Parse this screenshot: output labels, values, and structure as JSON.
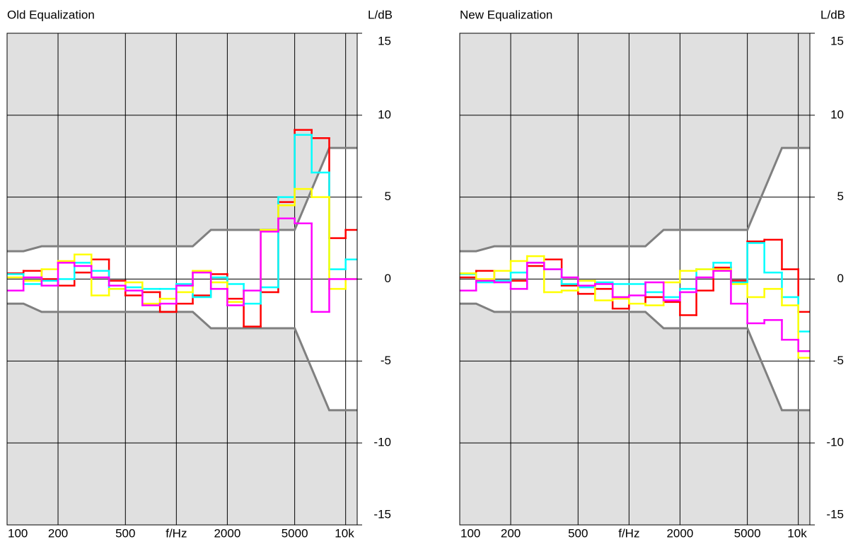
{
  "chart_data": [
    {
      "type": "line",
      "step": "post",
      "title": "Old Equalization",
      "y_label": "L/dB",
      "xscale": "log",
      "xlim": [
        100,
        11700
      ],
      "ylim": [
        -15,
        15
      ],
      "xticks": [
        100,
        200,
        500,
        {
          "value": 1000,
          "label": "f/Hz"
        },
        2000,
        5000,
        {
          "value": 10000,
          "label": "10k"
        }
      ],
      "yticks": [
        -15,
        -10,
        -5,
        0,
        5,
        10,
        15
      ],
      "grid": true,
      "x": [
        100,
        125,
        160,
        200,
        250,
        315,
        400,
        500,
        630,
        800,
        1000,
        1250,
        1600,
        2000,
        2500,
        3150,
        4000,
        5000,
        6300,
        8000,
        10000
      ],
      "series": [
        {
          "color": "#ff0000",
          "values": [
            0.35,
            0.5,
            0,
            -0.4,
            0.4,
            1.2,
            -0.1,
            -1.0,
            -0.8,
            -2.0,
            -1.5,
            -1.0,
            0.3,
            -1.2,
            -2.9,
            -0.8,
            4.7,
            9.1,
            8.6,
            2.5,
            3.0
          ]
        },
        {
          "color": "#00ffff",
          "values": [
            0.3,
            -0.3,
            -0.1,
            0,
            1.0,
            0.5,
            -0.6,
            -0.5,
            -0.6,
            -0.6,
            -0.3,
            -1.1,
            0.1,
            -0.3,
            -1.5,
            -0.5,
            5.0,
            8.8,
            6.5,
            0.6,
            1.2
          ]
        },
        {
          "color": "#ffff00",
          "values": [
            0.1,
            -0.1,
            0.6,
            1.1,
            1.5,
            -1.0,
            -0.6,
            -0.2,
            -1.5,
            -1.2,
            -0.8,
            0.5,
            -0.2,
            -1.4,
            -0.7,
            3.0,
            4.5,
            5.5,
            5.0,
            -0.6,
            0
          ]
        },
        {
          "color": "#ff00ff",
          "values": [
            -0.7,
            0.1,
            -0.4,
            1.0,
            0.8,
            0.1,
            -0.4,
            -0.7,
            -1.6,
            -1.5,
            -0.4,
            0.4,
            -0.6,
            -1.6,
            -0.7,
            2.9,
            3.7,
            3.4,
            -2.0,
            0,
            0
          ]
        }
      ],
      "tolerance": {
        "color": "#808080",
        "x": [
          100,
          125,
          160,
          1250,
          1600,
          5000,
          8000,
          11700
        ],
        "upper": [
          1.7,
          1.7,
          2,
          2,
          3,
          3,
          8,
          8
        ],
        "lower": [
          -1.5,
          -1.5,
          -2,
          -2,
          -3,
          -3,
          -8,
          -8
        ]
      }
    },
    {
      "type": "line",
      "step": "post",
      "title": "New Equalization",
      "y_label": "L/dB",
      "xscale": "log",
      "xlim": [
        100,
        11700
      ],
      "ylim": [
        -15,
        15
      ],
      "xticks": [
        100,
        200,
        500,
        {
          "value": 1000,
          "label": "f/Hz"
        },
        2000,
        5000,
        {
          "value": 10000,
          "label": "10k"
        }
      ],
      "yticks": [
        -15,
        -10,
        -5,
        0,
        5,
        10,
        15
      ],
      "grid": true,
      "x": [
        100,
        125,
        160,
        200,
        250,
        315,
        400,
        500,
        630,
        800,
        1000,
        1250,
        1600,
        2000,
        2500,
        3150,
        4000,
        5000,
        6300,
        8000,
        10000
      ],
      "series": [
        {
          "color": "#ff0000",
          "values": [
            0.1,
            0.5,
            -0.1,
            -0.1,
            0.8,
            1.2,
            -0.4,
            -0.9,
            -0.6,
            -1.8,
            -1.5,
            -1.1,
            -1.4,
            -2.2,
            -0.7,
            0.7,
            -0.1,
            2.3,
            2.4,
            0.6,
            -2.0
          ]
        },
        {
          "color": "#00ffff",
          "values": [
            0.3,
            -0.2,
            -0.1,
            0.4,
            1.0,
            0.6,
            -0.3,
            -0.5,
            -0.2,
            -0.3,
            -0.3,
            -0.8,
            -1.1,
            -0.6,
            0.6,
            1.0,
            -0.2,
            2.2,
            0.4,
            -1.1,
            -3.2
          ]
        },
        {
          "color": "#ffff00",
          "values": [
            0.35,
            0,
            0.5,
            1.1,
            1.4,
            -0.8,
            -0.7,
            -0.1,
            -1.3,
            -1.2,
            -1.5,
            -1.6,
            -0.2,
            0.5,
            0.6,
            0.6,
            -0.3,
            -1.1,
            -0.6,
            -1.6,
            -4.8
          ]
        },
        {
          "color": "#ff00ff",
          "values": [
            -0.7,
            -0.1,
            -0.2,
            -0.6,
            1.0,
            0.6,
            0.1,
            -0.4,
            -0.3,
            -1.1,
            -1.0,
            -0.2,
            -1.3,
            -0.8,
            0.1,
            0.5,
            -1.5,
            -2.7,
            -2.5,
            -3.7,
            -4.4
          ]
        }
      ],
      "tolerance": {
        "color": "#808080",
        "x": [
          100,
          125,
          160,
          1250,
          1600,
          5000,
          8000,
          11700
        ],
        "upper": [
          1.7,
          1.7,
          2,
          2,
          3,
          3,
          8,
          8
        ],
        "lower": [
          -1.5,
          -1.5,
          -2,
          -2,
          -3,
          -3,
          -8,
          -8
        ]
      }
    }
  ]
}
